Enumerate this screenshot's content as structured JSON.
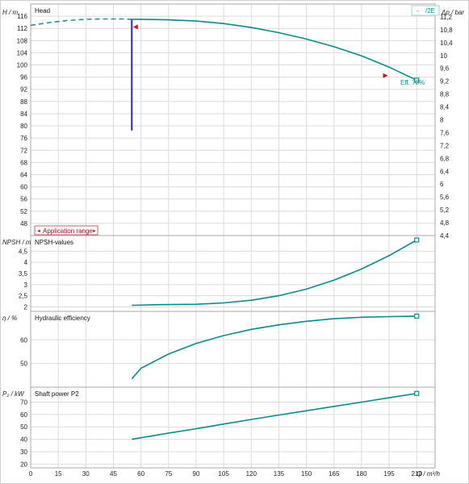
{
  "chart_data": [
    {
      "type": "line",
      "title": "Head",
      "ylabel": "H / m",
      "ylabel_right": "Δp / bar",
      "ylim": [
        44,
        120
      ],
      "yticks": [
        48,
        52,
        56,
        60,
        64,
        68,
        72,
        76,
        80,
        84,
        88,
        92,
        96,
        100,
        104,
        108,
        112,
        116
      ],
      "ylim_right": [
        4.4,
        11.6
      ],
      "yticks_right": [
        "4,4",
        "4,8",
        "5,2",
        "5,6",
        "6",
        "6,4",
        "6,8",
        "7,2",
        "7,6",
        "8",
        "8,4",
        "8,8",
        "9,2",
        "9,6",
        "10",
        "10,4",
        "10,8",
        "11,2"
      ],
      "legend_label": "/2E",
      "legend_prefix": "-",
      "annotation": "Eff. 70%",
      "application_range_label": "Application range",
      "application_range_left": "◄",
      "application_range_right": "►",
      "grid": true,
      "series": [
        {
          "style": "dashed",
          "color": "#2e8f8f",
          "x": [
            0,
            10,
            20,
            30,
            40,
            50,
            55
          ],
          "y": [
            113.0,
            113.9,
            114.6,
            115.0,
            115.1,
            115.1,
            115.0
          ]
        },
        {
          "style": "solid",
          "color": "#0a8b8b",
          "x": [
            55,
            60,
            75,
            90,
            105,
            120,
            135,
            150,
            165,
            180,
            195,
            210
          ],
          "y": [
            115.0,
            115.0,
            114.8,
            114.4,
            113.6,
            112.3,
            110.6,
            108.5,
            106.0,
            103.0,
            99.3,
            95.0
          ]
        }
      ],
      "vertical_line": {
        "x": 55,
        "y": [
          78.5,
          115.0
        ],
        "color": "#2b2bb5"
      },
      "markers": [
        {
          "shape": "triangle-left",
          "x": 57,
          "y": 112.5,
          "color": "#cc1122"
        },
        {
          "shape": "triangle-right",
          "x": 193,
          "y": 96.5,
          "color": "#cc1122"
        },
        {
          "shape": "square",
          "x": 210,
          "y": 95.0,
          "color": "#0a8b8b"
        }
      ]
    },
    {
      "type": "line",
      "title": "NPSH-values",
      "ylabel": "NPSH / m",
      "ylim": [
        1.8,
        5.2
      ],
      "yticks": [
        "2",
        "2,5",
        "3",
        "3,5",
        "4",
        "4,5"
      ],
      "ytick_values": [
        2,
        2.5,
        3,
        3.5,
        4,
        4.5
      ],
      "grid": true,
      "series": [
        {
          "style": "solid",
          "color": "#0a8b8b",
          "x": [
            55,
            70,
            90,
            105,
            120,
            135,
            150,
            165,
            180,
            195,
            210
          ],
          "y": [
            2.07,
            2.1,
            2.12,
            2.18,
            2.3,
            2.5,
            2.8,
            3.2,
            3.7,
            4.3,
            5.0
          ]
        }
      ],
      "markers": [
        {
          "shape": "square",
          "x": 210,
          "y": 5.0,
          "color": "#0a8b8b"
        }
      ]
    },
    {
      "type": "line",
      "title": "Hydraulic efficiency",
      "ylabel": "η / %",
      "ylim": [
        40,
        72
      ],
      "yticks": [
        "50",
        "60"
      ],
      "ytick_values": [
        50,
        60
      ],
      "grid": true,
      "series": [
        {
          "style": "solid",
          "color": "#0a8b8b",
          "x": [
            55,
            60,
            75,
            90,
            105,
            120,
            135,
            150,
            165,
            180,
            195,
            210
          ],
          "y": [
            43.5,
            48.0,
            54.0,
            58.5,
            61.8,
            64.4,
            66.3,
            67.8,
            68.9,
            69.5,
            69.8,
            70.0
          ]
        }
      ],
      "markers": [
        {
          "shape": "square",
          "x": 210,
          "y": 70.0,
          "color": "#0a8b8b"
        }
      ]
    },
    {
      "type": "line",
      "title": "Shaft power P2",
      "ylabel": "P₂ / kW",
      "ylim": [
        17,
        82
      ],
      "yticks": [
        "20",
        "30",
        "40",
        "50",
        "60",
        "70"
      ],
      "ytick_values": [
        20,
        30,
        40,
        50,
        60,
        70
      ],
      "grid": true,
      "series": [
        {
          "style": "solid",
          "color": "#0a8b8b",
          "x": [
            55,
            75,
            90,
            105,
            120,
            135,
            150,
            165,
            180,
            195,
            210
          ],
          "y": [
            40.0,
            45.0,
            48.5,
            52.3,
            56.0,
            59.6,
            63.0,
            66.5,
            70.0,
            73.5,
            77.0
          ]
        }
      ],
      "markers": [
        {
          "shape": "square",
          "x": 210,
          "y": 77.0,
          "color": "#0a8b8b"
        }
      ]
    }
  ],
  "x_axis": {
    "label": "Q / m³/h",
    "xlim": [
      0,
      220
    ],
    "ticks": [
      0,
      15,
      30,
      45,
      60,
      75,
      90,
      105,
      120,
      135,
      150,
      165,
      180,
      195,
      210
    ],
    "tick_labels": [
      "0",
      "15",
      "30",
      "45",
      "60",
      "75",
      "90",
      "105",
      "120",
      "135",
      "150",
      "165",
      "180",
      "195",
      "210"
    ]
  }
}
